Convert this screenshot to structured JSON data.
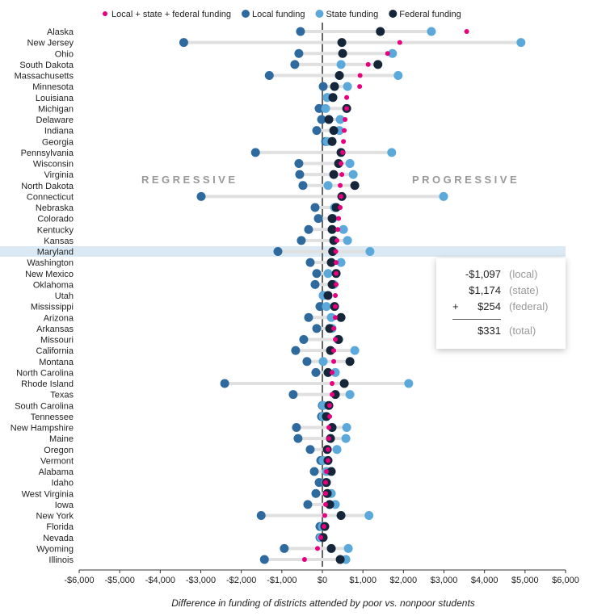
{
  "legend": [
    {
      "key": "total",
      "label": "Local + state + federal funding",
      "color": "#e6007e"
    },
    {
      "key": "local",
      "label": "Local funding",
      "color": "#2e6a9e"
    },
    {
      "key": "state",
      "label": "State funding",
      "color": "#5aa9da"
    },
    {
      "key": "federal",
      "label": "Federal funding",
      "color": "#15253a"
    }
  ],
  "annotations": {
    "left": "REGRESSIVE",
    "right": "PROGRESSIVE"
  },
  "highlighted_state": "Maryland",
  "tooltip": {
    "local": "-$1,097",
    "local_label": "(local)",
    "state": "$1,174",
    "state_label": "(state)",
    "federal_prefix": "+",
    "federal": "$254",
    "federal_label": "(federal)",
    "total": "$331",
    "total_label": "(total)"
  },
  "chart_data": {
    "type": "dot",
    "xlabel": "Difference in funding of districts attended by poor vs. nonpoor students",
    "xlim": [
      -6000,
      6000
    ],
    "xticks": [
      -6000,
      -5000,
      -4000,
      -3000,
      -2000,
      -1000,
      0,
      1000,
      2000,
      3000,
      4000,
      5000,
      6000
    ],
    "xtick_labels": [
      "-$6,000",
      "-$5,000",
      "-$4,000",
      "-$3,000",
      "-$2,000",
      "-$1,000",
      "$0",
      "$1,000",
      "$2,000",
      "$3,000",
      "$4,000",
      "$5,000",
      "$6,000"
    ],
    "grid": false,
    "legend_position": "top",
    "rows": [
      {
        "state": "Alaska",
        "local": -540,
        "state_f": 2690,
        "federal": 1430,
        "total": 3560
      },
      {
        "state": "New Jersey",
        "local": -3420,
        "state_f": 4900,
        "federal": 480,
        "total": 1910
      },
      {
        "state": "Ohio",
        "local": -580,
        "state_f": 1730,
        "federal": 500,
        "total": 1610
      },
      {
        "state": "South Dakota",
        "local": -680,
        "state_f": 460,
        "federal": 1370,
        "total": 1130
      },
      {
        "state": "Massachusetts",
        "local": -1310,
        "state_f": 1870,
        "federal": 420,
        "total": 930
      },
      {
        "state": "Minnesota",
        "local": 20,
        "state_f": 620,
        "federal": 300,
        "total": 920
      },
      {
        "state": "Louisiana",
        "local": 120,
        "state_f": 120,
        "federal": 260,
        "total": 600
      },
      {
        "state": "Michigan",
        "local": -80,
        "state_f": 80,
        "federal": 600,
        "total": 600
      },
      {
        "state": "Delaware",
        "local": -20,
        "state_f": 440,
        "federal": 160,
        "total": 560
      },
      {
        "state": "Indiana",
        "local": -140,
        "state_f": 420,
        "federal": 280,
        "total": 540
      },
      {
        "state": "Georgia",
        "local": 80,
        "state_f": 120,
        "federal": 240,
        "total": 520
      },
      {
        "state": "Pennsylvania",
        "local": -1650,
        "state_f": 1710,
        "federal": 460,
        "total": 500
      },
      {
        "state": "Wisconsin",
        "local": -580,
        "state_f": 680,
        "federal": 400,
        "total": 460
      },
      {
        "state": "Virginia",
        "local": -560,
        "state_f": 760,
        "federal": 280,
        "total": 480
      },
      {
        "state": "North Dakota",
        "local": -480,
        "state_f": 140,
        "federal": 800,
        "total": 440
      },
      {
        "state": "Connecticut",
        "local": -2990,
        "state_f": 2990,
        "federal": 480,
        "total": 460
      },
      {
        "state": "Nebraska",
        "local": -180,
        "state_f": 300,
        "federal": 340,
        "total": 440
      },
      {
        "state": "Colorado",
        "local": -100,
        "state_f": 260,
        "federal": 240,
        "total": 400
      },
      {
        "state": "Kentucky",
        "local": -340,
        "state_f": 520,
        "federal": 240,
        "total": 380
      },
      {
        "state": "Kansas",
        "local": -520,
        "state_f": 620,
        "federal": 280,
        "total": 360
      },
      {
        "state": "Maryland",
        "local": -1097,
        "state_f": 1174,
        "federal": 254,
        "total": 331
      },
      {
        "state": "Washington",
        "local": -300,
        "state_f": 460,
        "federal": 220,
        "total": 340
      },
      {
        "state": "New Mexico",
        "local": -140,
        "state_f": 140,
        "federal": 340,
        "total": 340
      },
      {
        "state": "Oklahoma",
        "local": -180,
        "state_f": 280,
        "federal": 240,
        "total": 340
      },
      {
        "state": "Utah",
        "local": 20,
        "state_f": 20,
        "federal": 140,
        "total": 320
      },
      {
        "state": "Mississippi",
        "local": -60,
        "state_f": 100,
        "federal": 300,
        "total": 320
      },
      {
        "state": "Arizona",
        "local": -340,
        "state_f": 220,
        "federal": 460,
        "total": 320
      },
      {
        "state": "Arkansas",
        "local": -140,
        "state_f": 240,
        "federal": 180,
        "total": 280
      },
      {
        "state": "Missouri",
        "local": -460,
        "state_f": 380,
        "federal": 400,
        "total": 320
      },
      {
        "state": "California",
        "local": -660,
        "state_f": 800,
        "federal": 200,
        "total": 280
      },
      {
        "state": "Montana",
        "local": -380,
        "state_f": 20,
        "federal": 680,
        "total": 280
      },
      {
        "state": "North Carolina",
        "local": -160,
        "state_f": 320,
        "federal": 140,
        "total": 240
      },
      {
        "state": "Rhode Island",
        "local": -2410,
        "state_f": 2130,
        "federal": 540,
        "total": 240
      },
      {
        "state": "Texas",
        "local": -720,
        "state_f": 680,
        "federal": 320,
        "total": 240
      },
      {
        "state": "South Carolina",
        "local": 0,
        "state_f": 20,
        "federal": 160,
        "total": 180
      },
      {
        "state": "Tennessee",
        "local": -20,
        "state_f": 20,
        "federal": 100,
        "total": 180
      },
      {
        "state": "New Hampshire",
        "local": -640,
        "state_f": 600,
        "federal": 240,
        "total": 160
      },
      {
        "state": "Maine",
        "local": -600,
        "state_f": 580,
        "federal": 200,
        "total": 160
      },
      {
        "state": "Oregon",
        "local": -300,
        "state_f": 360,
        "federal": 120,
        "total": 140
      },
      {
        "state": "Vermont",
        "local": -40,
        "state_f": 20,
        "federal": 140,
        "total": 140
      },
      {
        "state": "Alabama",
        "local": -200,
        "state_f": 100,
        "federal": 220,
        "total": 100
      },
      {
        "state": "Idaho",
        "local": -80,
        "state_f": 80,
        "federal": 100,
        "total": 80
      },
      {
        "state": "West Virginia",
        "local": -160,
        "state_f": 220,
        "federal": 120,
        "total": 80
      },
      {
        "state": "Iowa",
        "local": -360,
        "state_f": 320,
        "federal": 180,
        "total": 80
      },
      {
        "state": "New York",
        "local": -1510,
        "state_f": 1150,
        "federal": 460,
        "total": 60
      },
      {
        "state": "Florida",
        "local": -60,
        "state_f": 0,
        "federal": 60,
        "total": 40
      },
      {
        "state": "Nevada",
        "local": -60,
        "state_f": -40,
        "federal": 20,
        "total": -40
      },
      {
        "state": "Wyoming",
        "local": -940,
        "state_f": 640,
        "federal": 220,
        "total": -120
      },
      {
        "state": "Illinois",
        "local": -1430,
        "state_f": 580,
        "federal": 440,
        "total": -440
      }
    ]
  }
}
